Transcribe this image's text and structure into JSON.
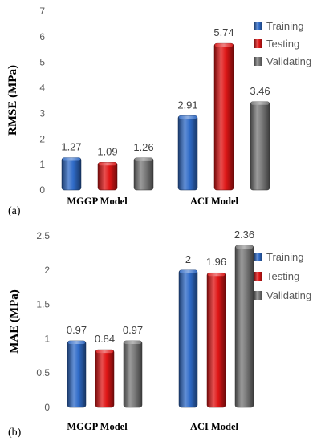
{
  "colors": {
    "Training": "#2f6bc8",
    "Testing": "#e01616",
    "Validating": "#7a7a7a"
  },
  "chart_data": [
    {
      "type": "bar",
      "panel_label": "(a)",
      "ylabel": "RMSE (MPa)",
      "categories": [
        "MGGP Model",
        "ACI Model"
      ],
      "series": [
        {
          "name": "Training",
          "values": [
            1.27,
            2.91
          ]
        },
        {
          "name": "Testing",
          "values": [
            1.09,
            5.74
          ]
        },
        {
          "name": "Validating",
          "values": [
            1.26,
            3.46
          ]
        }
      ],
      "data_labels": [
        [
          "1.27",
          "2.91"
        ],
        [
          "1.09",
          "5.74"
        ],
        [
          "1.26",
          "3.46"
        ]
      ],
      "ylim": [
        0,
        7
      ],
      "yticks": [
        "0",
        "1",
        "2",
        "3",
        "4",
        "5",
        "6",
        "7"
      ],
      "grid": false,
      "legend_position": "top-right"
    },
    {
      "type": "bar",
      "panel_label": "(b)",
      "ylabel": "MAE (MPa)",
      "categories": [
        "MGGP Model",
        "ACI Model"
      ],
      "series": [
        {
          "name": "Training",
          "values": [
            0.97,
            2
          ]
        },
        {
          "name": "Testing",
          "values": [
            0.84,
            1.96
          ]
        },
        {
          "name": "Validating",
          "values": [
            0.97,
            2.36
          ]
        }
      ],
      "data_labels": [
        [
          "0.97",
          "2"
        ],
        [
          "0.84",
          "1.96"
        ],
        [
          "0.97",
          "2.36"
        ]
      ],
      "ylim": [
        0,
        2.5
      ],
      "yticks": [
        "0",
        "0.5",
        "1",
        "1.5",
        "2",
        "2.5"
      ],
      "grid": false,
      "legend_position": "right"
    }
  ]
}
